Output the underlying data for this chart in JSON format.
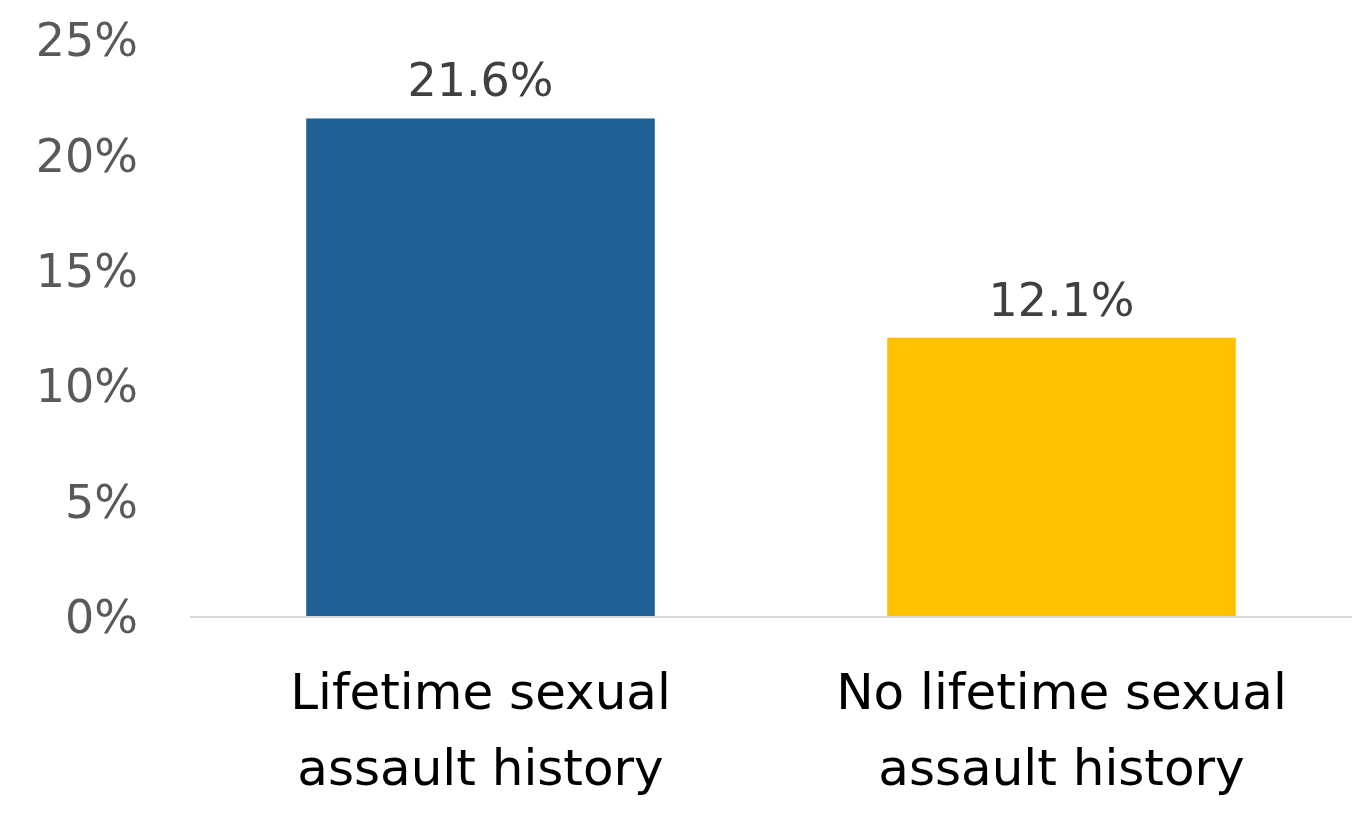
{
  "chart_data": {
    "type": "bar",
    "categories": [
      "Lifetime sexual assault history",
      "No lifetime sexual assault history"
    ],
    "values": [
      21.6,
      12.1
    ],
    "colors": [
      "#1f6195",
      "#ffc000"
    ],
    "value_labels": [
      "21.6%",
      "12.1%"
    ],
    "ylim": [
      0,
      25
    ],
    "yticks": [
      {
        "value": 0,
        "label": "0%"
      },
      {
        "value": 5,
        "label": "5%"
      },
      {
        "value": 10,
        "label": "10%"
      },
      {
        "value": 15,
        "label": "15%"
      },
      {
        "value": 20,
        "label": "20%"
      },
      {
        "value": 25,
        "label": "25%"
      }
    ],
    "grid": false
  }
}
